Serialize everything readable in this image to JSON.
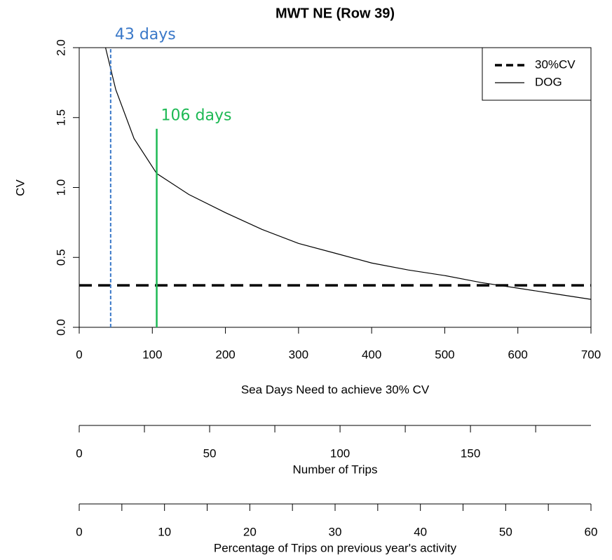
{
  "chart_data": {
    "type": "line",
    "title": "MWT NE (Row 39)",
    "xlabel": "Sea Days Need to achieve 30% CV",
    "ylabel": "CV",
    "xlim": [
      0,
      700
    ],
    "ylim": [
      0,
      2
    ],
    "xticks": [
      0,
      100,
      200,
      300,
      400,
      500,
      600,
      700
    ],
    "yticks": [
      {
        "value": 0,
        "label": "0.0"
      },
      0.5,
      {
        "value": 1,
        "label": "1.0"
      },
      1.5,
      {
        "value": 2,
        "label": "2.0"
      }
    ],
    "series": [
      {
        "name": "30%CV",
        "color": "#000000",
        "style": "dashed",
        "x": [
          0,
          700
        ],
        "values": [
          0.3,
          0.3
        ]
      },
      {
        "name": "DOG",
        "color": "#000000",
        "style": "solid",
        "x": [
          36,
          50,
          75,
          106,
          150,
          200,
          250,
          300,
          350,
          400,
          450,
          500,
          550,
          600,
          650,
          700
        ],
        "values": [
          2.0,
          1.7,
          1.35,
          1.1,
          0.95,
          0.82,
          0.7,
          0.6,
          0.53,
          0.46,
          0.41,
          0.37,
          0.32,
          0.28,
          0.24,
          0.2
        ]
      }
    ],
    "markers": [
      {
        "x": 43,
        "top": 2.0,
        "label": "43 days",
        "color": "#3a78c8",
        "style": "dashed"
      },
      {
        "x": 106,
        "top": 1.42,
        "label": "106 days",
        "color": "#1db954",
        "style": "solid"
      }
    ],
    "legend": "top-right",
    "extra_axes": [
      {
        "label": "Number of Trips",
        "xlim": [
          0,
          196.2
        ],
        "xticks": [
          0,
          50,
          100,
          150
        ],
        "minor_ticks": [
          25,
          75,
          125,
          175
        ]
      },
      {
        "label": "Percentage of Trips on previous year's activity",
        "xlim": [
          0,
          60
        ],
        "xticks": [
          0,
          10,
          20,
          30,
          40,
          50,
          60
        ],
        "minor_ticks": [
          5,
          15,
          25,
          35,
          45,
          55
        ]
      }
    ]
  }
}
